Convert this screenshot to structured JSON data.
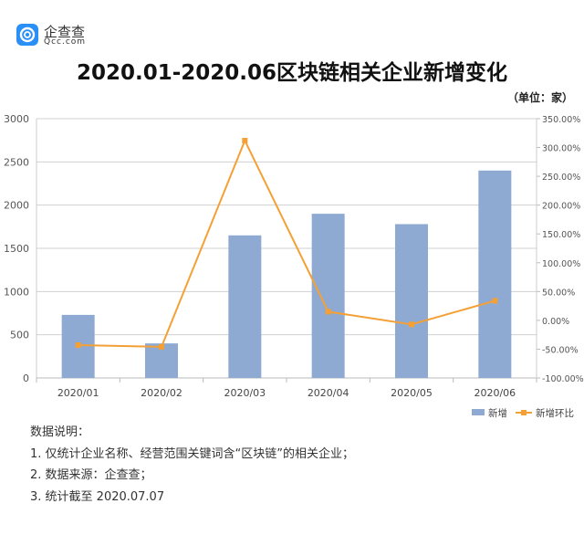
{
  "logo": {
    "cn": "企查查",
    "en": "Qcc.com",
    "color": "#2a8ff7"
  },
  "unit": "（单位：家）",
  "chart_data": {
    "type": "bar+line",
    "title": "2020.01-2020.06区块链相关企业新增变化",
    "categories": [
      "2020/01",
      "2020/02",
      "2020/03",
      "2020/04",
      "2020/05",
      "2020/06"
    ],
    "series": [
      {
        "name": "新增",
        "type": "bar",
        "axis": "left",
        "color": "#8eaad2",
        "values": [
          730,
          400,
          1650,
          1900,
          1780,
          2400
        ]
      },
      {
        "name": "新增环比",
        "type": "line",
        "axis": "right",
        "color": "#f4a035",
        "values": [
          -43.0,
          -46.0,
          312.0,
          15.0,
          -7.0,
          34.0
        ]
      }
    ],
    "ylim": [
      0,
      3000
    ],
    "yticks": [
      "0",
      "500",
      "1000",
      "1500",
      "2000",
      "2500",
      "3000"
    ],
    "y2lim": [
      -100,
      350
    ],
    "y2ticks": [
      "-100.00%",
      "-50.00%",
      "0.00%",
      "50.00%",
      "100.00%",
      "150.00%",
      "200.00%",
      "250.00%",
      "300.00%",
      "350.00%"
    ],
    "grid": true,
    "legend": "bottom-right"
  },
  "notes": {
    "heading": "数据说明：",
    "items": [
      "1. 仅统计企业名称、经营范围关键词含“区块链”的相关企业；",
      "2. 数据来源：企查查；",
      "3. 统计截至 2020.07.07"
    ]
  }
}
